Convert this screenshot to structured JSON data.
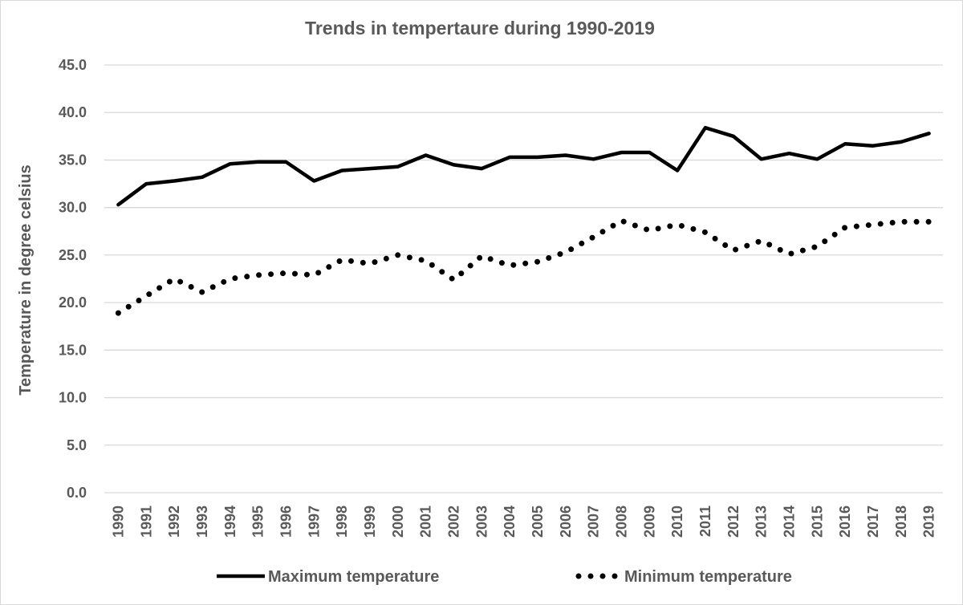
{
  "chart_data": {
    "type": "line",
    "title": "Trends in tempertaure during 1990-2019",
    "xlabel": "",
    "ylabel": "Temperature in degree  celsius",
    "ylim": [
      0,
      45
    ],
    "yticks": [
      "0.0",
      "5.0",
      "10.0",
      "15.0",
      "20.0",
      "25.0",
      "30.0",
      "35.0",
      "40.0",
      "45.0"
    ],
    "grid": true,
    "legend_position": "bottom",
    "categories": [
      "1990",
      "1991",
      "1992",
      "1993",
      "1994",
      "1995",
      "1996",
      "1997",
      "1998",
      "1999",
      "2000",
      "2001",
      "2002",
      "2003",
      "2004",
      "2005",
      "2006",
      "2007",
      "2008",
      "2009",
      "2010",
      "2011",
      "2012",
      "2013",
      "2014",
      "2015",
      "2016",
      "2017",
      "2018",
      "2019"
    ],
    "series": [
      {
        "name": "Maximum temperature",
        "style": "solid",
        "color": "#000000",
        "values": [
          30.3,
          32.5,
          32.8,
          33.2,
          34.6,
          34.8,
          34.8,
          32.8,
          33.9,
          34.1,
          34.3,
          35.5,
          34.5,
          34.1,
          35.3,
          35.3,
          35.5,
          35.1,
          35.8,
          35.8,
          33.9,
          38.4,
          37.5,
          35.1,
          35.7,
          35.1,
          36.7,
          36.5,
          36.9,
          37.8
        ]
      },
      {
        "name": "Minimum temperature",
        "style": "dotted",
        "color": "#000000",
        "values": [
          18.9,
          20.7,
          22.5,
          21.1,
          22.5,
          22.9,
          23.1,
          22.9,
          24.5,
          24.1,
          25.0,
          24.4,
          22.4,
          24.9,
          23.9,
          24.3,
          25.3,
          26.9,
          28.6,
          27.6,
          28.2,
          27.4,
          25.5,
          26.5,
          25.1,
          25.9,
          27.9,
          28.2,
          28.5,
          28.5
        ]
      }
    ]
  }
}
